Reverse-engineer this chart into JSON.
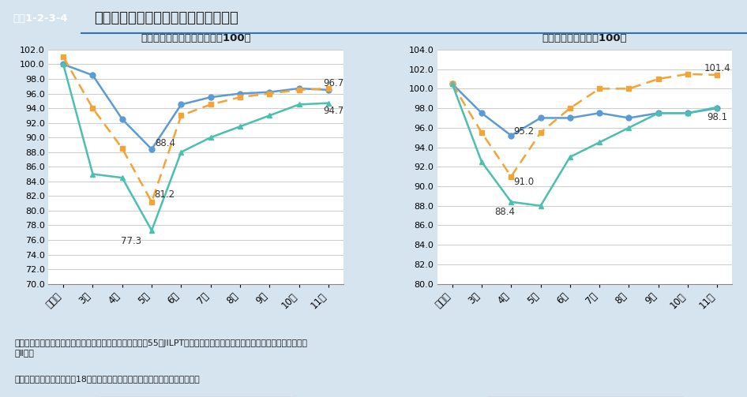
{
  "title": "図表1-2-3-4　週当たり労働時間と税込み月収の推移",
  "header_bg": "#1a6496",
  "header_text_color": "#ffffff",
  "body_bg": "#d6e4f0",
  "plot_bg": "#ffffff",
  "x_labels": [
    "通常月",
    "3月",
    "4月",
    "5月",
    "6月",
    "7月",
    "8月",
    "9月",
    "10月",
    "11月"
  ],
  "left_title": "週あたり労働時間（通常月＝100）",
  "left_ylim": [
    70.0,
    102.0
  ],
  "left_yticks": [
    70.0,
    72.0,
    74.0,
    76.0,
    78.0,
    80.0,
    82.0,
    84.0,
    86.0,
    88.0,
    90.0,
    92.0,
    94.0,
    96.0,
    98.0,
    100.0,
    102.0
  ],
  "left_male": [
    100.0,
    98.5,
    92.5,
    88.4,
    94.5,
    95.5,
    96.0,
    96.2,
    96.7,
    96.5
  ],
  "left_female": [
    101.0,
    94.0,
    88.5,
    81.2,
    93.0,
    94.5,
    95.5,
    96.0,
    96.5,
    96.7
  ],
  "left_child_female": [
    100.0,
    85.0,
    84.5,
    77.3,
    88.0,
    90.0,
    91.5,
    93.0,
    94.5,
    94.7
  ],
  "right_title": "税込月収（通常月＝100）",
  "right_ylim": [
    80.0,
    104.0
  ],
  "right_yticks": [
    80.0,
    82.0,
    84.0,
    86.0,
    88.0,
    90.0,
    92.0,
    94.0,
    96.0,
    98.0,
    100.0,
    102.0,
    104.0
  ],
  "right_male": [
    100.5,
    97.5,
    95.2,
    97.0,
    97.0,
    97.5,
    97.0,
    97.5,
    97.5,
    98.0
  ],
  "right_female": [
    100.5,
    95.5,
    91.0,
    95.5,
    98.0,
    100.0,
    100.0,
    101.0,
    101.5,
    101.4
  ],
  "right_child_female": [
    100.5,
    92.5,
    88.4,
    88.0,
    93.0,
    94.5,
    96.0,
    97.5,
    97.5,
    98.1
  ],
  "male_color": "#5b9bd5",
  "female_color": "#f4a335",
  "child_female_color": "#4bbfb0",
  "source_text": "資料：独立行政法人労働政策研究・研修機構　周燕飛「第55回JILPTリサーチアイコロナショックの被害は女性に集中（続\n編Ⅱ）」",
  "note_text": "（注）　子育て女性とは、18歳未満の子どもを育てている女性のことである。"
}
